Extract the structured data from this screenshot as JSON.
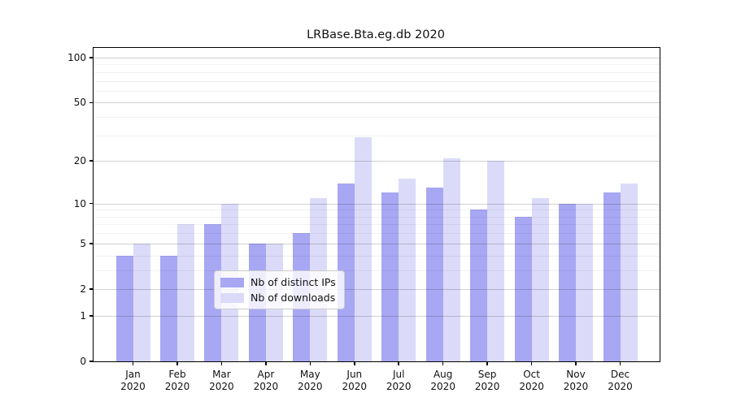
{
  "title": "LRBase.Bta.eg.db 2020",
  "chart_data": {
    "type": "bar",
    "title": "LRBase.Bta.eg.db 2020",
    "categories": [
      "Jan",
      "Feb",
      "Mar",
      "Apr",
      "May",
      "Jun",
      "Jul",
      "Aug",
      "Sep",
      "Oct",
      "Nov",
      "Dec"
    ],
    "category_year": "2020",
    "series": [
      {
        "name": "Nb of distinct IPs",
        "color": "#a7a7f4",
        "values": [
          4,
          4,
          7,
          5,
          6,
          14,
          12,
          13,
          9,
          8,
          10,
          12
        ]
      },
      {
        "name": "Nb of downloads",
        "color": "#dbdbf9",
        "values": [
          5,
          7,
          10,
          5,
          11,
          29,
          15,
          21,
          20,
          11,
          10,
          14
        ]
      }
    ],
    "yscale": "log1p",
    "y_tick_values": [
      0,
      1,
      2,
      5,
      10,
      20,
      50,
      100
    ],
    "y_tick_labels": [
      "0",
      "1",
      "2",
      "5",
      "10",
      "20",
      "50",
      "100"
    ],
    "y_minor_gridline_values": [
      3,
      4,
      6,
      7,
      8,
      9,
      30,
      40,
      60,
      70,
      80,
      90
    ],
    "y_major_gridline_values": [
      1,
      2,
      5,
      10,
      20,
      50,
      100
    ],
    "y_axis_top_value": 116,
    "ylim": [
      0,
      116
    ],
    "xlabel": "",
    "ylabel": "",
    "grid": true,
    "legend_position": "lower center",
    "legend_entries": [
      "Nb of distinct IPs",
      "Nb of downloads"
    ]
  },
  "colors": {
    "ips_bar": "#a7a7f4",
    "downloads_bar": "#dbdbf9",
    "major_grid": "rgba(0,0,0,0.18)",
    "minor_grid": "rgba(0,0,0,0.055)",
    "spine": "#000000",
    "legend_border": "#cccccc"
  }
}
